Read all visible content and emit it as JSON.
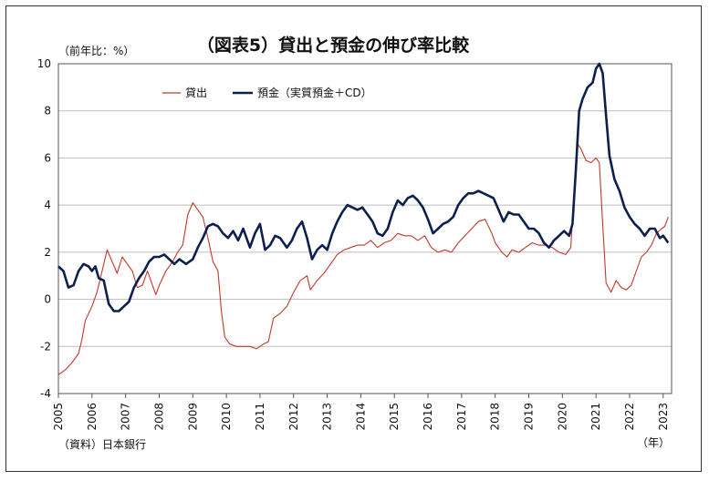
{
  "chart_data": {
    "type": "line",
    "title": "（図表5）貸出と預金の伸び率比較",
    "ylabel": "（前年比：%）",
    "xlabel": "（年）",
    "source": "（資料）日本銀行",
    "ylim": [
      -4,
      10
    ],
    "yticks": [
      "-4",
      "-2",
      "0",
      "2",
      "4",
      "6",
      "8",
      "10"
    ],
    "xlim": [
      2005.0,
      2023.25
    ],
    "xticks": [
      "2005",
      "2006",
      "2007",
      "2008",
      "2009",
      "2010",
      "2011",
      "2012",
      "2013",
      "2014",
      "2015",
      "2016",
      "2017",
      "2018",
      "2019",
      "2020",
      "2021",
      "2022",
      "2023"
    ],
    "grid": "horizontal",
    "legend_position": "top-left",
    "series": [
      {
        "name": "貸出",
        "color": "#c0392b",
        "points": [
          [
            2005.0,
            -3.2
          ],
          [
            2005.2,
            -3.0
          ],
          [
            2005.4,
            -2.7
          ],
          [
            2005.6,
            -2.3
          ],
          [
            2005.7,
            -1.7
          ],
          [
            2005.8,
            -0.9
          ],
          [
            2006.0,
            -0.3
          ],
          [
            2006.15,
            0.3
          ],
          [
            2006.3,
            1.2
          ],
          [
            2006.45,
            2.1
          ],
          [
            2006.6,
            1.6
          ],
          [
            2006.75,
            1.1
          ],
          [
            2006.9,
            1.8
          ],
          [
            2007.05,
            1.5
          ],
          [
            2007.2,
            1.2
          ],
          [
            2007.35,
            0.5
          ],
          [
            2007.5,
            0.6
          ],
          [
            2007.65,
            1.2
          ],
          [
            2007.8,
            0.6
          ],
          [
            2007.9,
            0.2
          ],
          [
            2008.0,
            0.6
          ],
          [
            2008.2,
            1.2
          ],
          [
            2008.4,
            1.6
          ],
          [
            2008.55,
            2.0
          ],
          [
            2008.7,
            2.3
          ],
          [
            2008.85,
            3.6
          ],
          [
            2009.0,
            4.1
          ],
          [
            2009.15,
            3.8
          ],
          [
            2009.3,
            3.5
          ],
          [
            2009.45,
            2.6
          ],
          [
            2009.6,
            1.6
          ],
          [
            2009.75,
            1.2
          ],
          [
            2009.85,
            -0.5
          ],
          [
            2009.95,
            -1.6
          ],
          [
            2010.1,
            -1.9
          ],
          [
            2010.3,
            -2.0
          ],
          [
            2010.5,
            -2.0
          ],
          [
            2010.7,
            -2.0
          ],
          [
            2010.9,
            -2.1
          ],
          [
            2011.1,
            -1.9
          ],
          [
            2011.25,
            -1.8
          ],
          [
            2011.4,
            -0.8
          ],
          [
            2011.6,
            -0.6
          ],
          [
            2011.8,
            -0.3
          ],
          [
            2012.0,
            0.3
          ],
          [
            2012.2,
            0.8
          ],
          [
            2012.4,
            1.0
          ],
          [
            2012.5,
            0.4
          ],
          [
            2012.7,
            0.8
          ],
          [
            2012.9,
            1.1
          ],
          [
            2013.1,
            1.5
          ],
          [
            2013.3,
            1.9
          ],
          [
            2013.5,
            2.1
          ],
          [
            2013.7,
            2.2
          ],
          [
            2013.9,
            2.3
          ],
          [
            2014.1,
            2.3
          ],
          [
            2014.3,
            2.5
          ],
          [
            2014.5,
            2.2
          ],
          [
            2014.7,
            2.4
          ],
          [
            2014.9,
            2.5
          ],
          [
            2015.1,
            2.8
          ],
          [
            2015.3,
            2.7
          ],
          [
            2015.5,
            2.7
          ],
          [
            2015.7,
            2.5
          ],
          [
            2015.9,
            2.7
          ],
          [
            2016.1,
            2.2
          ],
          [
            2016.3,
            2.0
          ],
          [
            2016.5,
            2.1
          ],
          [
            2016.7,
            2.0
          ],
          [
            2016.9,
            2.4
          ],
          [
            2017.1,
            2.7
          ],
          [
            2017.3,
            3.0
          ],
          [
            2017.5,
            3.3
          ],
          [
            2017.7,
            3.4
          ],
          [
            2017.9,
            2.8
          ],
          [
            2018.0,
            2.4
          ],
          [
            2018.2,
            2.0
          ],
          [
            2018.35,
            1.8
          ],
          [
            2018.5,
            2.1
          ],
          [
            2018.7,
            2.0
          ],
          [
            2018.9,
            2.2
          ],
          [
            2019.1,
            2.4
          ],
          [
            2019.3,
            2.3
          ],
          [
            2019.5,
            2.3
          ],
          [
            2019.7,
            2.2
          ],
          [
            2019.9,
            2.0
          ],
          [
            2020.1,
            1.9
          ],
          [
            2020.25,
            2.2
          ],
          [
            2020.35,
            4.5
          ],
          [
            2020.45,
            6.6
          ],
          [
            2020.55,
            6.4
          ],
          [
            2020.7,
            5.9
          ],
          [
            2020.85,
            5.8
          ],
          [
            2021.0,
            6.0
          ],
          [
            2021.1,
            5.8
          ],
          [
            2021.2,
            3.2
          ],
          [
            2021.3,
            0.7
          ],
          [
            2021.45,
            0.3
          ],
          [
            2021.6,
            0.8
          ],
          [
            2021.75,
            0.5
          ],
          [
            2021.9,
            0.4
          ],
          [
            2022.05,
            0.6
          ],
          [
            2022.2,
            1.2
          ],
          [
            2022.35,
            1.8
          ],
          [
            2022.5,
            2.0
          ],
          [
            2022.65,
            2.3
          ],
          [
            2022.8,
            2.8
          ],
          [
            2022.95,
            3.0
          ],
          [
            2023.05,
            3.1
          ],
          [
            2023.15,
            3.5
          ]
        ]
      },
      {
        "name": "預金（実質預金＋CD）",
        "color": "#0d1f4f",
        "points": [
          [
            2005.0,
            1.4
          ],
          [
            2005.15,
            1.2
          ],
          [
            2005.3,
            0.5
          ],
          [
            2005.45,
            0.6
          ],
          [
            2005.6,
            1.2
          ],
          [
            2005.75,
            1.5
          ],
          [
            2005.9,
            1.4
          ],
          [
            2006.0,
            1.2
          ],
          [
            2006.1,
            1.4
          ],
          [
            2006.2,
            0.9
          ],
          [
            2006.35,
            0.8
          ],
          [
            2006.5,
            -0.2
          ],
          [
            2006.65,
            -0.5
          ],
          [
            2006.8,
            -0.5
          ],
          [
            2006.95,
            -0.3
          ],
          [
            2007.1,
            -0.1
          ],
          [
            2007.25,
            0.5
          ],
          [
            2007.4,
            0.9
          ],
          [
            2007.55,
            1.2
          ],
          [
            2007.7,
            1.6
          ],
          [
            2007.85,
            1.8
          ],
          [
            2008.0,
            1.8
          ],
          [
            2008.15,
            1.9
          ],
          [
            2008.3,
            1.7
          ],
          [
            2008.45,
            1.5
          ],
          [
            2008.6,
            1.7
          ],
          [
            2008.8,
            1.5
          ],
          [
            2009.0,
            1.7
          ],
          [
            2009.15,
            2.2
          ],
          [
            2009.3,
            2.6
          ],
          [
            2009.45,
            3.1
          ],
          [
            2009.6,
            3.2
          ],
          [
            2009.75,
            3.1
          ],
          [
            2009.9,
            2.8
          ],
          [
            2010.05,
            2.6
          ],
          [
            2010.2,
            2.9
          ],
          [
            2010.35,
            2.5
          ],
          [
            2010.5,
            3.0
          ],
          [
            2010.7,
            2.2
          ],
          [
            2010.85,
            2.8
          ],
          [
            2011.0,
            3.2
          ],
          [
            2011.15,
            2.1
          ],
          [
            2011.3,
            2.3
          ],
          [
            2011.45,
            2.7
          ],
          [
            2011.6,
            2.6
          ],
          [
            2011.8,
            2.2
          ],
          [
            2011.95,
            2.5
          ],
          [
            2012.1,
            3.0
          ],
          [
            2012.25,
            3.3
          ],
          [
            2012.4,
            2.6
          ],
          [
            2012.55,
            1.7
          ],
          [
            2012.7,
            2.1
          ],
          [
            2012.85,
            2.3
          ],
          [
            2013.0,
            2.1
          ],
          [
            2013.15,
            2.8
          ],
          [
            2013.3,
            3.3
          ],
          [
            2013.45,
            3.7
          ],
          [
            2013.6,
            4.0
          ],
          [
            2013.75,
            3.9
          ],
          [
            2013.9,
            3.8
          ],
          [
            2014.05,
            3.9
          ],
          [
            2014.2,
            3.6
          ],
          [
            2014.35,
            3.3
          ],
          [
            2014.5,
            2.8
          ],
          [
            2014.65,
            2.7
          ],
          [
            2014.8,
            3.0
          ],
          [
            2014.95,
            3.7
          ],
          [
            2015.1,
            4.2
          ],
          [
            2015.25,
            4.0
          ],
          [
            2015.4,
            4.3
          ],
          [
            2015.55,
            4.4
          ],
          [
            2015.7,
            4.2
          ],
          [
            2015.85,
            3.9
          ],
          [
            2016.0,
            3.4
          ],
          [
            2016.15,
            2.8
          ],
          [
            2016.3,
            3.0
          ],
          [
            2016.45,
            3.2
          ],
          [
            2016.6,
            3.3
          ],
          [
            2016.75,
            3.5
          ],
          [
            2016.9,
            4.0
          ],
          [
            2017.05,
            4.3
          ],
          [
            2017.2,
            4.5
          ],
          [
            2017.35,
            4.5
          ],
          [
            2017.5,
            4.6
          ],
          [
            2017.65,
            4.5
          ],
          [
            2017.8,
            4.4
          ],
          [
            2017.95,
            4.3
          ],
          [
            2018.1,
            3.8
          ],
          [
            2018.25,
            3.3
          ],
          [
            2018.4,
            3.7
          ],
          [
            2018.55,
            3.6
          ],
          [
            2018.7,
            3.6
          ],
          [
            2018.85,
            3.3
          ],
          [
            2019.0,
            3.0
          ],
          [
            2019.15,
            3.0
          ],
          [
            2019.3,
            2.8
          ],
          [
            2019.45,
            2.4
          ],
          [
            2019.6,
            2.2
          ],
          [
            2019.75,
            2.5
          ],
          [
            2019.9,
            2.7
          ],
          [
            2020.05,
            2.9
          ],
          [
            2020.2,
            2.7
          ],
          [
            2020.3,
            3.2
          ],
          [
            2020.4,
            5.5
          ],
          [
            2020.5,
            8.0
          ],
          [
            2020.6,
            8.5
          ],
          [
            2020.75,
            9.0
          ],
          [
            2020.9,
            9.2
          ],
          [
            2021.0,
            9.8
          ],
          [
            2021.1,
            10.0
          ],
          [
            2021.2,
            9.6
          ],
          [
            2021.3,
            7.8
          ],
          [
            2021.4,
            6.1
          ],
          [
            2021.55,
            5.1
          ],
          [
            2021.7,
            4.6
          ],
          [
            2021.85,
            3.9
          ],
          [
            2022.0,
            3.5
          ],
          [
            2022.15,
            3.2
          ],
          [
            2022.3,
            3.0
          ],
          [
            2022.45,
            2.7
          ],
          [
            2022.6,
            3.0
          ],
          [
            2022.75,
            3.0
          ],
          [
            2022.9,
            2.6
          ],
          [
            2023.0,
            2.7
          ],
          [
            2023.15,
            2.4
          ]
        ]
      }
    ]
  }
}
